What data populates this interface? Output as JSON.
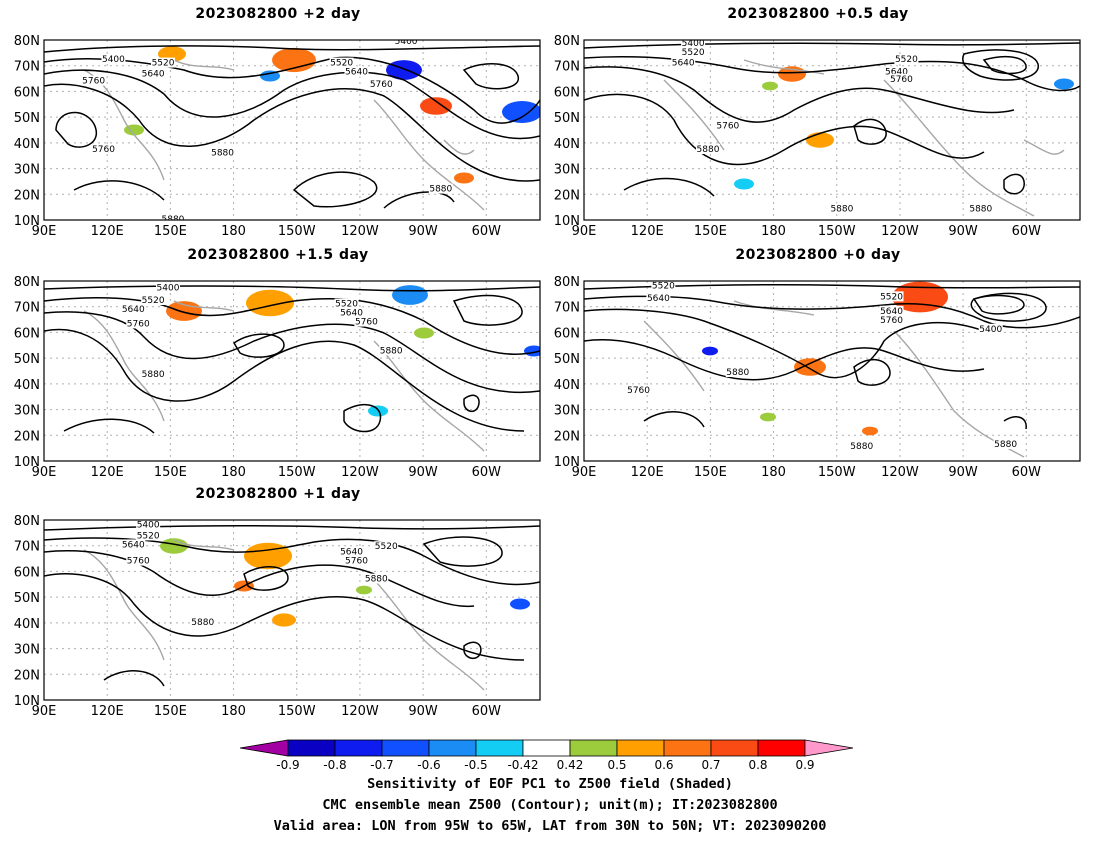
{
  "colors": {
    "coast": "#a6a6a6",
    "contour": "#000000",
    "grid": "#b0b0b0",
    "scale": [
      "#a300a3",
      "#0a00c4",
      "#0f1cf0",
      "#1050ff",
      "#1c8cf5",
      "#14cdf5",
      "#ffffff",
      "#9ccc3c",
      "#ffa000",
      "#fb7312",
      "#fb4b14",
      "#fe0000",
      "#ff99cc"
    ]
  },
  "axes": {
    "lat_labels": [
      "80N",
      "70N",
      "60N",
      "50N",
      "40N",
      "30N",
      "20N",
      "10N"
    ],
    "lon_labels": [
      "90E",
      "120E",
      "150E",
      "180",
      "150W",
      "120W",
      "90W",
      "60W"
    ]
  },
  "panels": [
    {
      "title": "2023082800 +2 day",
      "contour_labels": [
        "5400",
        "5520",
        "5640",
        "5760",
        "5400",
        "5520",
        "5640",
        "5760",
        "5760",
        "5880",
        "5880",
        "5880"
      ]
    },
    {
      "title": "2023082800 +0.5 day",
      "contour_labels": [
        "5400",
        "5520",
        "5640",
        "5520",
        "5640",
        "5760",
        "5760",
        "5880",
        "5880",
        "5880"
      ]
    },
    {
      "title": "2023082800 +1.5 day",
      "contour_labels": [
        "5400",
        "5520",
        "5640",
        "5760",
        "5520",
        "5640",
        "5760",
        "5880",
        "5880"
      ]
    },
    {
      "title": "2023082800 +0 day",
      "contour_labels": [
        "5520",
        "5640",
        "5520",
        "5640",
        "5760",
        "5400",
        "5880",
        "5760",
        "5880",
        "5880"
      ]
    },
    {
      "title": "2023082800 +1 day",
      "contour_labels": [
        "5400",
        "5520",
        "5640",
        "5760",
        "5640",
        "5520",
        "5760",
        "5880",
        "5880"
      ]
    }
  ],
  "colorbar": {
    "labels": [
      "-0.9",
      "-0.8",
      "-0.7",
      "-0.6",
      "-0.5",
      "-0.42",
      "0.42",
      "0.5",
      "0.6",
      "0.7",
      "0.8",
      "0.9"
    ]
  },
  "caption": {
    "line1": "Sensitivity of EOF PC1 to Z500 field (Shaded)",
    "line2": "CMC ensemble mean Z500 (Contour); unit(m); IT:2023082800",
    "line3": "Valid area: LON from 95W to 65W, LAT from 30N to 50N; VT: 2023090200"
  }
}
